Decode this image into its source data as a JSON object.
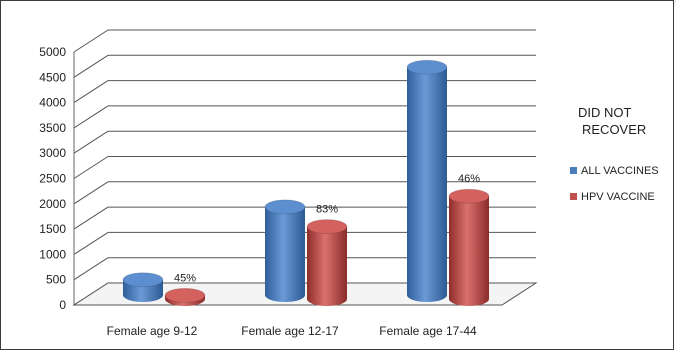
{
  "chart_data": {
    "type": "bar",
    "categories": [
      "Female age 9-12",
      "Female age 12-17",
      "Female age 17-44"
    ],
    "series": [
      {
        "name": "ALL VACCINES",
        "values": [
          420,
          1860,
          4620
        ],
        "color": "#4a7ebb"
      },
      {
        "name": "HPV VACCINE",
        "values": [
          190,
          1550,
          2150
        ],
        "color": "#c0504d"
      }
    ],
    "data_labels": [
      "45%",
      "83%",
      "46%"
    ],
    "yticks": [
      "0",
      "500",
      "1000",
      "1500",
      "2000",
      "2500",
      "3000",
      "3500",
      "4000",
      "4500",
      "5000"
    ],
    "ylim": [
      0,
      5000
    ],
    "legend": {
      "title_line1": "DID NOT",
      "title_line2": "RECOVER",
      "position": "right"
    },
    "grid": true
  }
}
